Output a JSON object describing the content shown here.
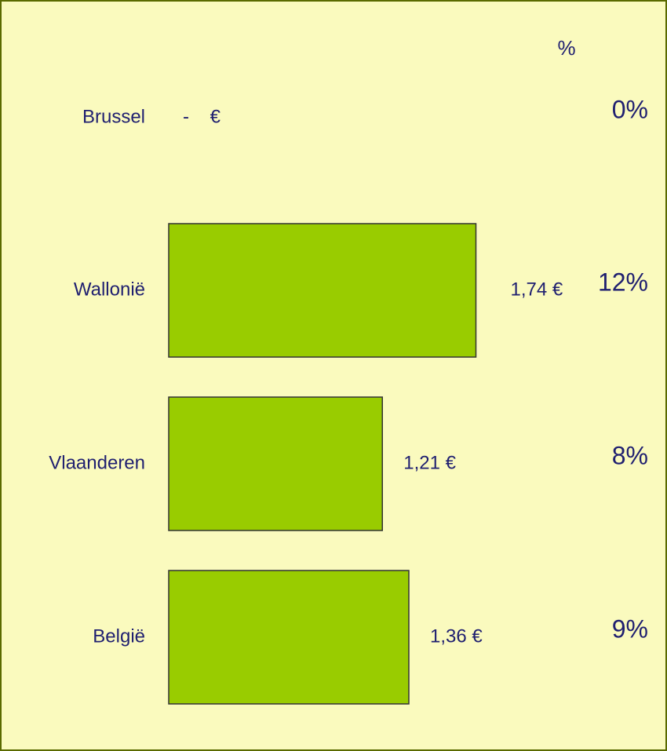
{
  "chart_data": {
    "type": "bar",
    "orientation": "horizontal",
    "categories": [
      "Brussel",
      "Wallonië",
      "Vlaanderen",
      "België"
    ],
    "values": [
      0,
      1.74,
      1.21,
      1.36
    ],
    "value_labels": [
      "-    €",
      "1,74 €",
      "1,21 €",
      "1,36 €"
    ],
    "color": "#99cc00",
    "percent": {
      "header": "%",
      "values": [
        0,
        12,
        8,
        9
      ],
      "value_labels": [
        "0%",
        "12%",
        "8%",
        "9%"
      ]
    }
  }
}
